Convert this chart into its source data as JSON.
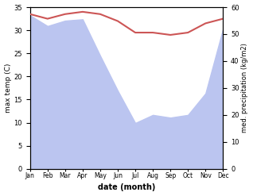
{
  "months": [
    "Jan",
    "Feb",
    "Mar",
    "Apr",
    "May",
    "Jun",
    "Jul",
    "Aug",
    "Sep",
    "Oct",
    "Nov",
    "Dec"
  ],
  "max_temp": [
    33.5,
    32.5,
    33.5,
    34.0,
    33.5,
    32.0,
    29.5,
    29.5,
    29.0,
    29.5,
    31.5,
    32.5
  ],
  "precipitation": [
    57.0,
    53.0,
    55.0,
    55.5,
    42.0,
    29.0,
    17.0,
    20.0,
    19.0,
    20.0,
    28.0,
    52.0
  ],
  "temp_color": "#cc5555",
  "precip_fill_color": "#bbc5f0",
  "xlabel": "date (month)",
  "ylabel_left": "max temp (C)",
  "ylabel_right": "med. precipitation (kg/m2)",
  "ylim_left": [
    0,
    35
  ],
  "ylim_right": [
    0,
    60
  ],
  "yticks_left": [
    0,
    5,
    10,
    15,
    20,
    25,
    30,
    35
  ],
  "yticks_right": [
    0,
    10,
    20,
    30,
    40,
    50,
    60
  ],
  "background_color": "#ffffff"
}
